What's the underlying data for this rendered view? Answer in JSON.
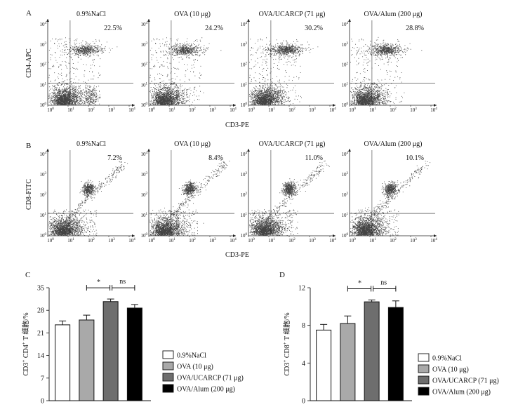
{
  "panel_a": {
    "label": "A",
    "ylabel": "CD4-APC",
    "xlabel": "CD3-PE",
    "plots": [
      {
        "title": "0.9%NaCl",
        "pct": "22.5%"
      },
      {
        "title": "OVA (10 μg)",
        "pct": "24.2%"
      },
      {
        "title": "OVA/UCARCP (71 μg)",
        "pct": "30.2%"
      },
      {
        "title": "OVA/Alum (200 μg)",
        "pct": "28.8%"
      }
    ]
  },
  "panel_b": {
    "label": "B",
    "ylabel": "CD8-FITC",
    "xlabel": "CD3-PE",
    "plots": [
      {
        "title": "0.9%NaCl",
        "pct": "7.2%"
      },
      {
        "title": "OVA (10 μg)",
        "pct": "8.4%"
      },
      {
        "title": "OVA/UCARCP (71 μg)",
        "pct": "11.0%"
      },
      {
        "title": "OVA/Alum (200 μg)",
        "pct": "10.1%"
      }
    ]
  },
  "flow_axis": {
    "x_exp": [
      "0",
      "1",
      "2",
      "3",
      "4"
    ],
    "y_exp": [
      "0",
      "1",
      "2",
      "3",
      "4"
    ],
    "base": "10"
  },
  "chart_data": [
    {
      "id": "C",
      "type": "bar",
      "label": "C",
      "ylabel_pre": "CD3",
      "ylabel_sup1": "+",
      "ylabel_mid": " CD4",
      "ylabel_sup2": "+",
      "ylabel_post": " T 细胞/%",
      "ylim": [
        0,
        35
      ],
      "yticks": [
        "0",
        "7",
        "14",
        "21",
        "28",
        "35"
      ],
      "categories": [
        "0.9%NaCl",
        "OVA (10 μg)",
        "OVA/UCARCP (71 μg)",
        "OVA/Alum (200 μg)"
      ],
      "values": [
        23.5,
        25.0,
        30.7,
        28.7
      ],
      "errors": [
        1.2,
        1.5,
        0.8,
        1.1
      ],
      "colors": [
        "#ffffff",
        "#a9a9a9",
        "#6e6e6e",
        "#000000"
      ],
      "sig": [
        "*",
        "ns"
      ]
    },
    {
      "id": "D",
      "type": "bar",
      "label": "D",
      "ylabel_pre": "CD3",
      "ylabel_sup1": "+",
      "ylabel_mid": " CD8",
      "ylabel_sup2": "+",
      "ylabel_post": " T 细胞/%",
      "ylim": [
        0,
        12
      ],
      "yticks": [
        "0",
        "4",
        "8",
        "12"
      ],
      "categories": [
        "0.9%NaCl",
        "OVA (10 μg)",
        "OVA/UCARCP (71 μg)",
        "OVA/Alum (200 μg)"
      ],
      "values": [
        7.5,
        8.2,
        10.5,
        9.9
      ],
      "errors": [
        0.6,
        0.8,
        0.2,
        0.7
      ],
      "colors": [
        "#ffffff",
        "#a9a9a9",
        "#6e6e6e",
        "#000000"
      ],
      "sig": [
        "*",
        "ns"
      ]
    }
  ]
}
